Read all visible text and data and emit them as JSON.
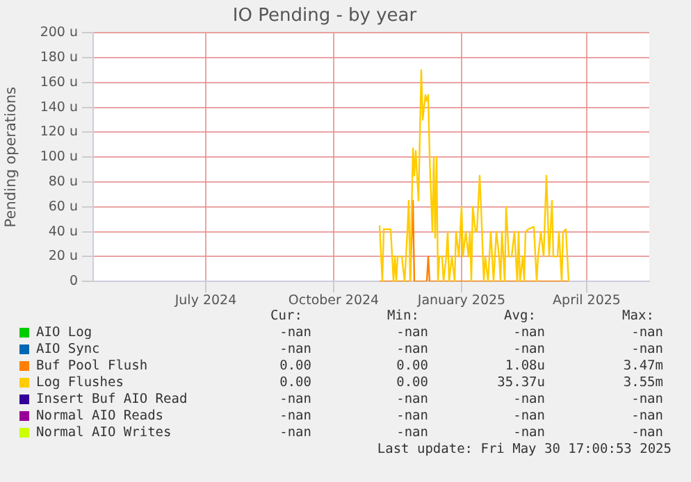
{
  "chart_data": {
    "type": "line",
    "title": "IO Pending - by year",
    "ylabel": "Pending operations",
    "xlim": [
      "2024-04-11",
      "2025-05-16"
    ],
    "xticks": [
      {
        "value": "2024-07-01",
        "label": "July 2024"
      },
      {
        "value": "2024-10-01",
        "label": "October 2024"
      },
      {
        "value": "2025-01-01",
        "label": "January 2025"
      },
      {
        "value": "2025-04-01",
        "label": "April 2025"
      }
    ],
    "ylim": [
      0,
      200
    ],
    "yticks": [
      {
        "value": 0,
        "label": "0"
      },
      {
        "value": 20,
        "label": "20 u"
      },
      {
        "value": 40,
        "label": "40 u"
      },
      {
        "value": 60,
        "label": "60 u"
      },
      {
        "value": 80,
        "label": "80 u"
      },
      {
        "value": 100,
        "label": "100 u"
      },
      {
        "value": 120,
        "label": "120 u"
      },
      {
        "value": 140,
        "label": "140 u"
      },
      {
        "value": 160,
        "label": "160 u"
      },
      {
        "value": 180,
        "label": "180 u"
      },
      {
        "value": 200,
        "label": "200 u"
      }
    ],
    "grid": true,
    "legend": "bottom",
    "marker": "none",
    "line_style": "solid",
    "series": [
      {
        "name": "AIO Log",
        "color": "#00cc00"
      },
      {
        "name": "AIO Sync",
        "color": "#0066b3"
      },
      {
        "name": "Buf Pool Flush",
        "color": "#ff8000",
        "x": [
          "2024-11-03",
          "2024-11-25",
          "2024-11-27",
          "2024-11-28",
          "2024-12-07",
          "2024-12-08",
          "2024-12-09",
          "2025-03-19"
        ],
        "values": [
          0,
          0,
          65,
          0,
          0,
          20,
          0,
          0
        ]
      },
      {
        "name": "Log Flushes",
        "color": "#ffcc00",
        "x": [
          "2024-11-03",
          "2024-11-05",
          "2024-11-06",
          "2024-11-08",
          "2024-11-11",
          "2024-11-13",
          "2024-11-14",
          "2024-11-15",
          "2024-11-16",
          "2024-11-19",
          "2024-11-21",
          "2024-11-22",
          "2024-11-23",
          "2024-11-24",
          "2024-11-25",
          "2024-11-27",
          "2024-11-28",
          "2024-11-29",
          "2024-12-01",
          "2024-12-03",
          "2024-12-04",
          "2024-12-06",
          "2024-12-07",
          "2024-12-08",
          "2024-12-09",
          "2024-12-11",
          "2024-12-12",
          "2024-12-13",
          "2024-12-14",
          "2024-12-15",
          "2024-12-16",
          "2024-12-18",
          "2024-12-19",
          "2024-12-21",
          "2024-12-22",
          "2024-12-23",
          "2024-12-25",
          "2024-12-27",
          "2024-12-28",
          "2024-12-30",
          "2024-12-31",
          "2025-01-01",
          "2025-01-02",
          "2025-01-04",
          "2025-01-06",
          "2025-01-07",
          "2025-01-08",
          "2025-01-09",
          "2025-01-11",
          "2025-01-12",
          "2025-01-14",
          "2025-01-15",
          "2025-01-17",
          "2025-01-18",
          "2025-01-20",
          "2025-01-21",
          "2025-01-22",
          "2025-01-24",
          "2025-01-26",
          "2025-01-28",
          "2025-01-29",
          "2025-01-30",
          "2025-02-01",
          "2025-02-02",
          "2025-02-04",
          "2025-02-06",
          "2025-02-08",
          "2025-02-10",
          "2025-02-11",
          "2025-02-12",
          "2025-02-14",
          "2025-02-15",
          "2025-02-16",
          "2025-02-18",
          "2025-02-22",
          "2025-02-24",
          "2025-02-25",
          "2025-02-27",
          "2025-03-01",
          "2025-03-03",
          "2025-03-05",
          "2025-03-07",
          "2025-03-08",
          "2025-03-11",
          "2025-03-12",
          "2025-03-14",
          "2025-03-15",
          "2025-03-17",
          "2025-03-19"
        ],
        "values": [
          45,
          0,
          42,
          42,
          42,
          0,
          20,
          0,
          20,
          20,
          0,
          20,
          40,
          65,
          0,
          107,
          85,
          105,
          65,
          170,
          130,
          150,
          145,
          150,
          100,
          40,
          100,
          35,
          100,
          0,
          20,
          20,
          0,
          20,
          40,
          0,
          20,
          0,
          40,
          20,
          40,
          60,
          20,
          40,
          20,
          40,
          0,
          60,
          40,
          40,
          85,
          60,
          0,
          20,
          0,
          20,
          40,
          0,
          40,
          20,
          0,
          40,
          0,
          60,
          20,
          20,
          40,
          0,
          40,
          0,
          20,
          0,
          40,
          42,
          44,
          0,
          20,
          40,
          20,
          85,
          20,
          65,
          20,
          20,
          40,
          0,
          40,
          42,
          0
        ]
      },
      {
        "name": "Insert Buf AIO Read",
        "color": "#330099"
      },
      {
        "name": "Normal AIO Reads",
        "color": "#990099"
      },
      {
        "name": "Normal AIO Writes",
        "color": "#ccff00"
      }
    ],
    "annotations": [
      "Cur:",
      "Min:",
      "Avg:",
      "Max:",
      "-nan",
      "-nan",
      "-nan",
      "-nan",
      "-nan",
      "-nan",
      "-nan",
      "-nan",
      "0.00",
      "0.00",
      "1.08u",
      "3.47m",
      "0.00",
      "0.00",
      "35.37u",
      "3.55m",
      "-nan",
      "-nan",
      "-nan",
      "-nan",
      "-nan",
      "-nan",
      "-nan",
      "-nan",
      "-nan",
      "-nan",
      "-nan",
      "-nan",
      "Last update: Fri May 30 17:00:53 2025"
    ]
  }
}
